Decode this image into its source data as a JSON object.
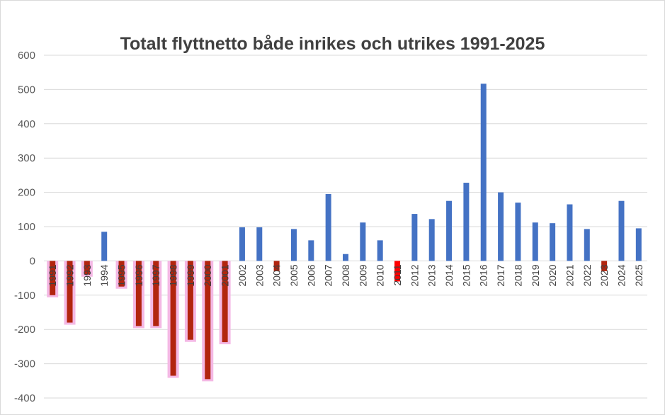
{
  "chart_data": {
    "type": "bar",
    "title": "Totalt flyttnetto både inrikes och utrikes 1991-2025",
    "xlabel": "",
    "ylabel": "",
    "ylim": [
      -400,
      600
    ],
    "yticks": [
      600,
      500,
      400,
      300,
      200,
      100,
      0,
      -100,
      -200,
      -300,
      -400
    ],
    "grid": true,
    "legend": "none",
    "categories": [
      "1991",
      "1992",
      "1993",
      "1994",
      "1995",
      "1996",
      "1997",
      "1998",
      "1999",
      "2000",
      "2001",
      "2002",
      "2003",
      "2004",
      "2005",
      "2006",
      "2007",
      "2008",
      "2009",
      "2010",
      "2011",
      "2012",
      "2013",
      "2014",
      "2015",
      "2016",
      "2017",
      "2018",
      "2019",
      "2020",
      "2021",
      "2022",
      "2023",
      "2024",
      "2025"
    ],
    "values": [
      -100,
      -180,
      -40,
      85,
      -75,
      -190,
      -190,
      -335,
      -230,
      -345,
      -237,
      98,
      98,
      -30,
      93,
      60,
      195,
      20,
      112,
      60,
      -60,
      137,
      122,
      175,
      228,
      517,
      200,
      170,
      112,
      110,
      165,
      93,
      -30,
      175,
      95
    ],
    "colors": {
      "positive": "#4472c4",
      "negative": "#b2250e",
      "negative_highlight": "#ff0000",
      "highlight_glow": "#f4b8e4",
      "grid": "#d9d9d9",
      "axis_text": "#595959"
    }
  }
}
